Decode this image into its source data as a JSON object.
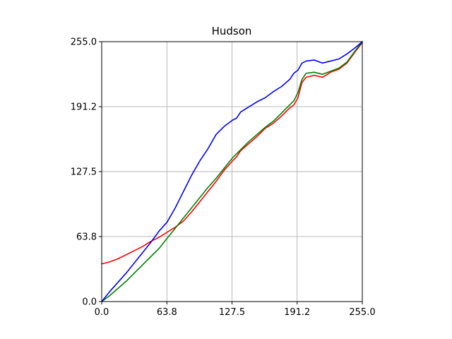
{
  "chart_data": {
    "type": "line",
    "title": "Hudson",
    "xlabel": "",
    "ylabel": "",
    "xlim": [
      0,
      255
    ],
    "ylim": [
      0,
      255
    ],
    "grid": true,
    "aspect": "equal",
    "x_ticks": [
      0.0,
      63.8,
      127.5,
      191.2,
      255.0
    ],
    "x_tick_labels": [
      "0.0",
      "63.8",
      "127.5",
      "191.2",
      "255.0"
    ],
    "y_ticks": [
      0.0,
      63.8,
      127.5,
      191.2,
      255.0
    ],
    "y_tick_labels": [
      "0.0",
      "63.8",
      "127.5",
      "191.2",
      "255.0"
    ],
    "series": [
      {
        "color": "#ff0000",
        "x": [
          0,
          8,
          16,
          24,
          32,
          40,
          48,
          56,
          64,
          72,
          80,
          88,
          96,
          104,
          112,
          120,
          128,
          132,
          136,
          144,
          152,
          160,
          168,
          176,
          184,
          188,
          192,
          196,
          200,
          208,
          216,
          224,
          232,
          240,
          248,
          255
        ],
        "y": [
          37,
          39,
          42,
          46,
          50,
          54,
          59,
          63,
          68,
          73,
          79,
          88,
          98,
          108,
          118,
          129,
          138,
          142,
          148,
          155,
          162,
          170,
          175,
          182,
          190,
          193,
          200,
          215,
          220,
          222,
          220,
          225,
          228,
          234,
          245,
          254
        ]
      },
      {
        "color": "#008000",
        "x": [
          0,
          8,
          16,
          24,
          32,
          40,
          48,
          56,
          64,
          72,
          80,
          88,
          96,
          104,
          112,
          120,
          128,
          132,
          136,
          144,
          152,
          160,
          168,
          176,
          184,
          188,
          192,
          196,
          200,
          208,
          216,
          224,
          232,
          240,
          248,
          255
        ],
        "y": [
          0,
          6,
          13,
          20,
          28,
          36,
          44,
          52,
          62,
          72,
          82,
          92,
          102,
          112,
          121,
          131,
          141,
          145,
          149,
          157,
          164,
          171,
          177,
          185,
          193,
          197,
          205,
          218,
          224,
          225,
          223,
          226,
          229,
          235,
          246,
          255
        ]
      },
      {
        "color": "#0000ff",
        "x": [
          0,
          8,
          16,
          24,
          32,
          40,
          48,
          56,
          64,
          72,
          80,
          88,
          96,
          104,
          112,
          120,
          128,
          132,
          136,
          144,
          152,
          160,
          168,
          176,
          184,
          188,
          192,
          196,
          200,
          208,
          216,
          224,
          232,
          240,
          248,
          255
        ],
        "y": [
          0,
          10,
          19,
          28,
          38,
          48,
          58,
          69,
          78,
          92,
          108,
          124,
          138,
          150,
          164,
          172,
          178,
          180,
          186,
          191,
          196,
          200,
          206,
          211,
          218,
          224,
          227,
          234,
          236,
          237,
          234,
          236,
          238,
          243,
          249,
          255
        ]
      }
    ]
  }
}
